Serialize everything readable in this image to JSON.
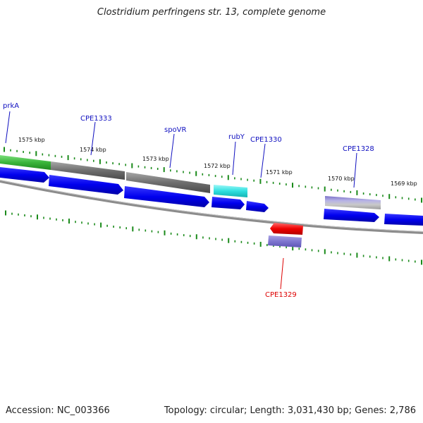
{
  "title": "Clostridium perfringens str. 13, complete genome",
  "accession": "Accession: NC_003366",
  "summary": "Topology: circular; Length: 3,031,430 bp; Genes: 2,786",
  "kbp_markers": [
    "1575 kbp",
    "1574 kbp",
    "1573 kbp",
    "1572 kbp",
    "1571 kbp",
    "1570 kbp",
    "1569 kbp"
  ],
  "genes_forward": [
    {
      "label": "prkA",
      "color": "#3ab53a"
    },
    {
      "label": "CPE1333",
      "color": "#6e6e6e"
    },
    {
      "label": "spoVR",
      "color": "#6e6e6e"
    },
    {
      "label": "rubY",
      "color": "#2fe0e0"
    },
    {
      "label": "CPE1330",
      "color": "#0000ee"
    },
    {
      "label": "CPE1328",
      "color": "#8a84d6"
    }
  ],
  "genes_reverse": [
    {
      "label": "CPE1329",
      "color": "#ee0000"
    }
  ],
  "colors": {
    "cds": "#0000ee",
    "label_forward": "#1010c0",
    "label_reverse": "#dd0000",
    "tick": "#1a8a1a",
    "backbone": "#8c8c8c"
  }
}
